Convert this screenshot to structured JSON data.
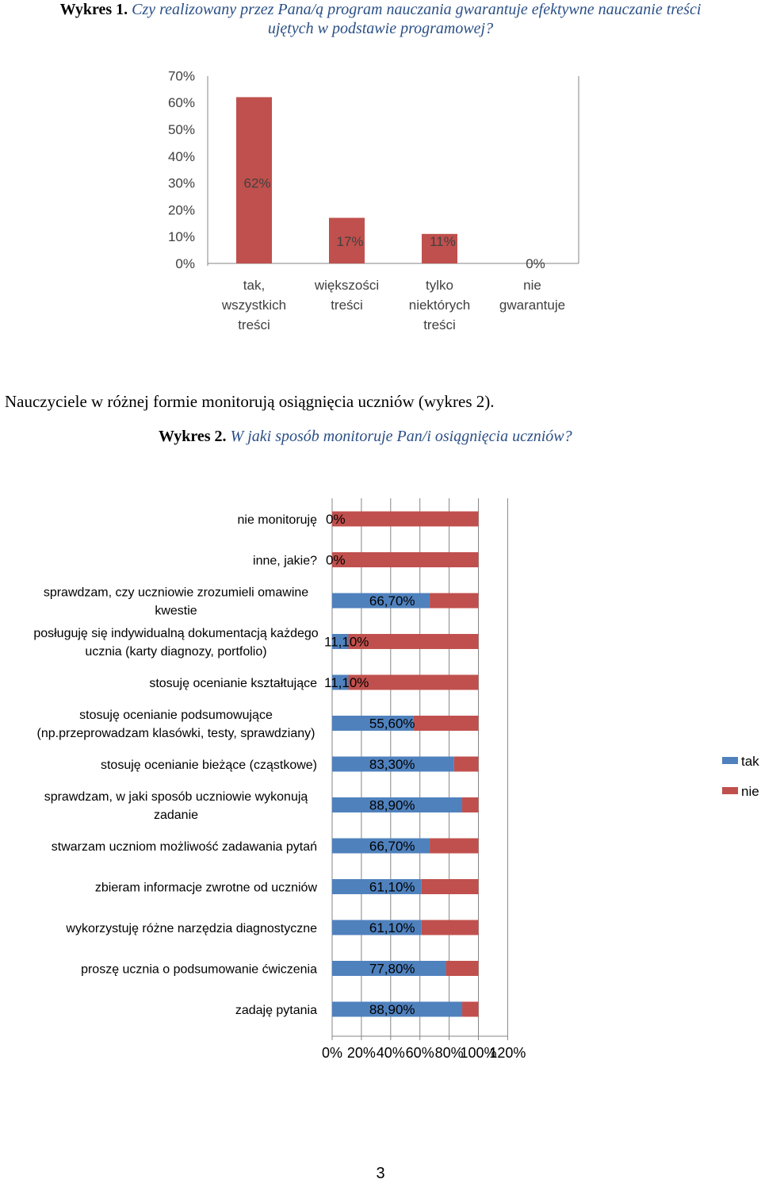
{
  "caption1": {
    "prefix": "Wykres 1.",
    "line1": "Czy realizowany przez Pana/ą program nauczania gwarantuje efektywne nauczanie treści",
    "line2": "ujętych w podstawie programowej?"
  },
  "intro": "Nauczyciele w różnej formie monitorują osiągnięcia uczniów (wykres 2).",
  "caption2": {
    "prefix": "Wykres 2.",
    "text": "W jaki sposób monitoruje Pan/i osiągnięcia uczniów?"
  },
  "page_number": "3",
  "colors": {
    "tak": "#4f81bd",
    "nie": "#c0504d",
    "grid": "#868686"
  },
  "chart_data": [
    {
      "type": "bar",
      "title": "",
      "ylim": [
        0,
        0.7
      ],
      "yticks": [
        "70%",
        "60%",
        "50%",
        "40%",
        "30%",
        "20%",
        "10%",
        "0%"
      ],
      "categories": [
        [
          "tak,",
          "wszystkich",
          "treści"
        ],
        [
          "większości",
          "treści"
        ],
        [
          "tylko",
          "niektórych",
          "treści"
        ],
        [
          "nie",
          "gwarantuje"
        ]
      ],
      "values": [
        0.62,
        0.17,
        0.11,
        0.0
      ],
      "labels": [
        "62%",
        "17%",
        "11%",
        "0%"
      ]
    },
    {
      "type": "bar",
      "orientation": "horizontal",
      "stacked": true,
      "xlim": [
        0,
        1.2
      ],
      "xticks": [
        "0%",
        "20%",
        "40%",
        "60%",
        "80%",
        "100%",
        "120%"
      ],
      "legend": [
        "tak",
        "nie"
      ],
      "categories": [
        [
          "nie monitoruję"
        ],
        [
          "inne, jakie?"
        ],
        [
          "sprawdzam, czy uczniowie zrozumieli omawine",
          "kwestie"
        ],
        [
          "posługuję się indywidualną dokumentacją każdego",
          "ucznia (karty diagnozy, portfolio)"
        ],
        [
          "stosuję ocenianie kształtujące"
        ],
        [
          "stosuję ocenianie podsumowujące",
          "(np.przeprowadzam klasówki, testy, sprawdziany)"
        ],
        [
          "stosuję ocenianie bieżące (cząstkowe)"
        ],
        [
          "sprawdzam, w jaki sposób uczniowie wykonują",
          "zadanie"
        ],
        [
          "stwarzam uczniom możliwość zadawania pytań"
        ],
        [
          "zbieram informacje zwrotne od uczniów"
        ],
        [
          "wykorzystuję różne narzędzia diagnostyczne"
        ],
        [
          "proszę ucznia o podsumowanie ćwiczenia"
        ],
        [
          "zadaję pytania"
        ]
      ],
      "series": [
        {
          "name": "tak",
          "values": [
            0,
            0,
            0.667,
            0.111,
            0.111,
            0.556,
            0.833,
            0.889,
            0.667,
            0.611,
            0.611,
            0.778,
            0.889
          ]
        },
        {
          "name": "nie",
          "values": [
            1,
            1,
            0.333,
            0.889,
            0.889,
            0.444,
            0.167,
            0.111,
            0.333,
            0.389,
            0.389,
            0.222,
            0.111
          ]
        }
      ],
      "labels": [
        "0%",
        "0%",
        "66,70%",
        "11,10%",
        "11,10%",
        "55,60%",
        "83,30%",
        "88,90%",
        "66,70%",
        "61,10%",
        "61,10%",
        "77,80%",
        "88,90%"
      ]
    }
  ]
}
